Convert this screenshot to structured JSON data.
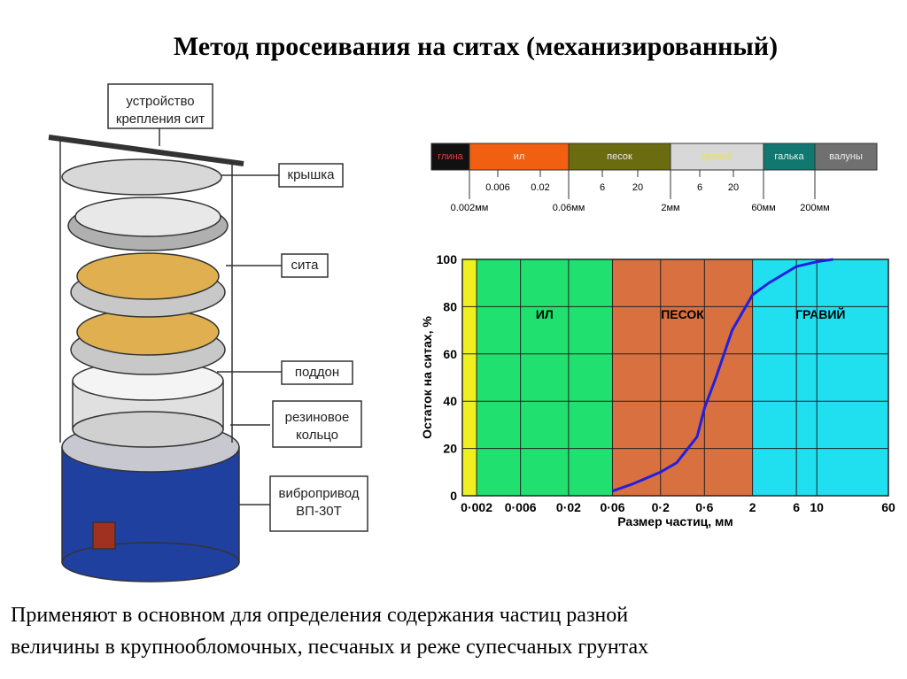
{
  "title": "Метод просеивания на ситах (механизированный)",
  "apparatus": {
    "labels": [
      [
        "устройство",
        "крепления сит"
      ],
      [
        "крышка"
      ],
      [
        "сита"
      ],
      [
        "поддон"
      ],
      [
        "резиновое",
        "кольцо"
      ],
      [
        "вибропривод",
        "ВП-30Т"
      ]
    ]
  },
  "scale_bar": {
    "segments": [
      {
        "name": "глина",
        "color": "#111111"
      },
      {
        "name": "ил",
        "color": "#f06010"
      },
      {
        "name": "песок",
        "color": "#6b6b10"
      },
      {
        "name": "гравий",
        "color": "#d8d8d8"
      },
      {
        "name": "галька",
        "color": "#107870"
      },
      {
        "name": "валуны",
        "color": "#707070"
      }
    ],
    "sub_ticks": [
      "0.006",
      "0.02",
      "6",
      "20",
      "6",
      "20"
    ],
    "bounds": [
      "0.002мм",
      "0.06мм",
      "2мм",
      "60мм",
      "200мм"
    ]
  },
  "chart_data": {
    "type": "line",
    "xlabel": "Размер частиц, мм",
    "ylabel": "Остаток на ситах, %",
    "log_x": true,
    "xlim": [
      0.0014,
      60
    ],
    "ylim": [
      0,
      100
    ],
    "xticks": [
      {
        "value": 0.002,
        "label": "0·002"
      },
      {
        "value": 0.006,
        "label": "0·006"
      },
      {
        "value": 0.02,
        "label": "0·02"
      },
      {
        "value": 0.06,
        "label": "0·06"
      },
      {
        "value": 0.2,
        "label": "0·2"
      },
      {
        "value": 0.6,
        "label": "0·6"
      },
      2,
      6,
      10,
      60
    ],
    "yticks": [
      0,
      20,
      40,
      60,
      80,
      100
    ],
    "grid": true,
    "zones": [
      {
        "from": 0.0014,
        "to": 0.002,
        "color": "#f0f020"
      },
      {
        "name": "ИЛ",
        "from": 0.002,
        "to": 0.06,
        "color": "#20e070"
      },
      {
        "name": "ПЕСОК",
        "from": 0.06,
        "to": 2,
        "color": "#d87040"
      },
      {
        "name": "ГРАВИЙ",
        "from": 2,
        "to": 60,
        "color": "#20e0f0"
      }
    ],
    "series": [
      {
        "color": "#2020e0",
        "x": [
          0.06,
          0.1,
          0.2,
          0.3,
          0.5,
          0.6,
          0.8,
          1.2,
          2,
          3,
          6,
          10,
          15
        ],
        "values": [
          2,
          5,
          10,
          14,
          25,
          37,
          50,
          70,
          85,
          90,
          97,
          99,
          100
        ]
      }
    ]
  },
  "footer": [
    "Применяют в основном для определения содержания частиц разной",
    "величины в крупнообломочных, песчаных и реже супесчаных грунтах"
  ]
}
